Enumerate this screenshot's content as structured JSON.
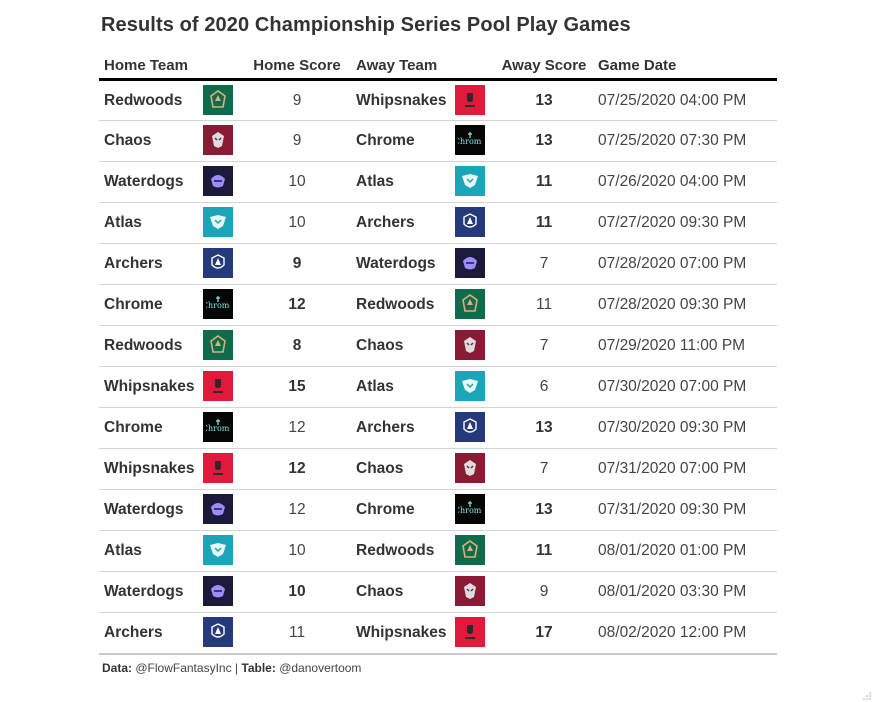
{
  "title": "Results of 2020 Championship Series Pool Play Games",
  "columns": {
    "home_team": "Home Team",
    "home_score": "Home Score",
    "away_team": "Away Team",
    "away_score": "Away Score",
    "game_date": "Game Date"
  },
  "teams": {
    "Redwoods": {
      "color": "#0e6b4c",
      "icon": "redwoods-logo-icon"
    },
    "Chaos": {
      "color": "#8a1b34",
      "icon": "chaos-logo-icon"
    },
    "Waterdogs": {
      "color": "#1b1a3a",
      "icon": "waterdogs-logo-icon"
    },
    "Atlas": {
      "color": "#1aa6b8",
      "icon": "atlas-logo-icon"
    },
    "Archers": {
      "color": "#243a7a",
      "icon": "archers-logo-icon"
    },
    "Chrome": {
      "color": "#050505",
      "icon": "chrome-logo-icon"
    },
    "Whipsnakes": {
      "color": "#e11a3c",
      "icon": "whipsnakes-logo-icon"
    }
  },
  "rows": [
    {
      "home": "Redwoods",
      "home_score": "9",
      "away": "Whipsnakes",
      "away_score": "13",
      "winner": "away",
      "date": "07/25/2020 04:00 PM"
    },
    {
      "home": "Chaos",
      "home_score": "9",
      "away": "Chrome",
      "away_score": "13",
      "winner": "away",
      "date": "07/25/2020 07:30 PM"
    },
    {
      "home": "Waterdogs",
      "home_score": "10",
      "away": "Atlas",
      "away_score": "11",
      "winner": "away",
      "date": "07/26/2020 04:00 PM"
    },
    {
      "home": "Atlas",
      "home_score": "10",
      "away": "Archers",
      "away_score": "11",
      "winner": "away",
      "date": "07/27/2020 09:30 PM"
    },
    {
      "home": "Archers",
      "home_score": "9",
      "away": "Waterdogs",
      "away_score": "7",
      "winner": "home",
      "date": "07/28/2020 07:00 PM"
    },
    {
      "home": "Chrome",
      "home_score": "12",
      "away": "Redwoods",
      "away_score": "11",
      "winner": "home",
      "date": "07/28/2020 09:30 PM"
    },
    {
      "home": "Redwoods",
      "home_score": "8",
      "away": "Chaos",
      "away_score": "7",
      "winner": "home",
      "date": "07/29/2020 11:00 PM"
    },
    {
      "home": "Whipsnakes",
      "home_score": "15",
      "away": "Atlas",
      "away_score": "6",
      "winner": "home",
      "date": "07/30/2020 07:00 PM"
    },
    {
      "home": "Chrome",
      "home_score": "12",
      "away": "Archers",
      "away_score": "13",
      "winner": "away",
      "date": "07/30/2020 09:30 PM"
    },
    {
      "home": "Whipsnakes",
      "home_score": "12",
      "away": "Chaos",
      "away_score": "7",
      "winner": "home",
      "date": "07/31/2020 07:00 PM"
    },
    {
      "home": "Waterdogs",
      "home_score": "12",
      "away": "Chrome",
      "away_score": "13",
      "winner": "away",
      "date": "07/31/2020 09:30 PM"
    },
    {
      "home": "Atlas",
      "home_score": "10",
      "away": "Redwoods",
      "away_score": "11",
      "winner": "away",
      "date": "08/01/2020 01:00 PM"
    },
    {
      "home": "Waterdogs",
      "home_score": "10",
      "away": "Chaos",
      "away_score": "9",
      "winner": "home",
      "date": "08/01/2020 03:30 PM"
    },
    {
      "home": "Archers",
      "home_score": "11",
      "away": "Whipsnakes",
      "away_score": "17",
      "winner": "away",
      "date": "08/02/2020 12:00 PM"
    }
  ],
  "source": {
    "data_label": "Data:",
    "data_value": "@FlowFantasyInc",
    "separator": "|",
    "table_label": "Table:",
    "table_value": "@danovertoom"
  }
}
